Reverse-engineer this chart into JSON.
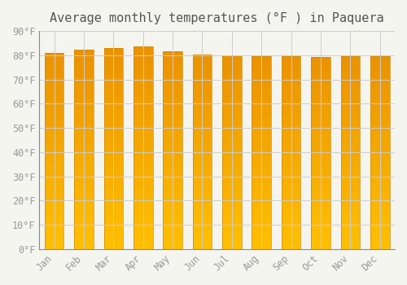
{
  "title": "Average monthly temperatures (°F ) in Paquera",
  "months": [
    "Jan",
    "Feb",
    "Mar",
    "Apr",
    "May",
    "Jun",
    "Jul",
    "Aug",
    "Sep",
    "Oct",
    "Nov",
    "Dec"
  ],
  "values": [
    81.0,
    82.3,
    83.1,
    83.5,
    81.7,
    80.3,
    80.0,
    79.7,
    79.5,
    79.3,
    79.5,
    79.7
  ],
  "bar_color_top": "#FFA500",
  "bar_color_bottom": "#FFD700",
  "bar_edge_color": "#E8950A",
  "ylim": [
    0,
    90
  ],
  "yticks": [
    0,
    10,
    20,
    30,
    40,
    50,
    60,
    70,
    80,
    90
  ],
  "ytick_labels": [
    "0°F",
    "10°F",
    "20°F",
    "30°F",
    "40°F",
    "50°F",
    "60°F",
    "70°F",
    "80°F",
    "90°F"
  ],
  "background_color": "#F5F5F0",
  "plot_bg_color": "#F5F5F0",
  "grid_color": "#CCCCCC",
  "title_fontsize": 11,
  "tick_fontsize": 8.5,
  "bar_width": 0.65
}
